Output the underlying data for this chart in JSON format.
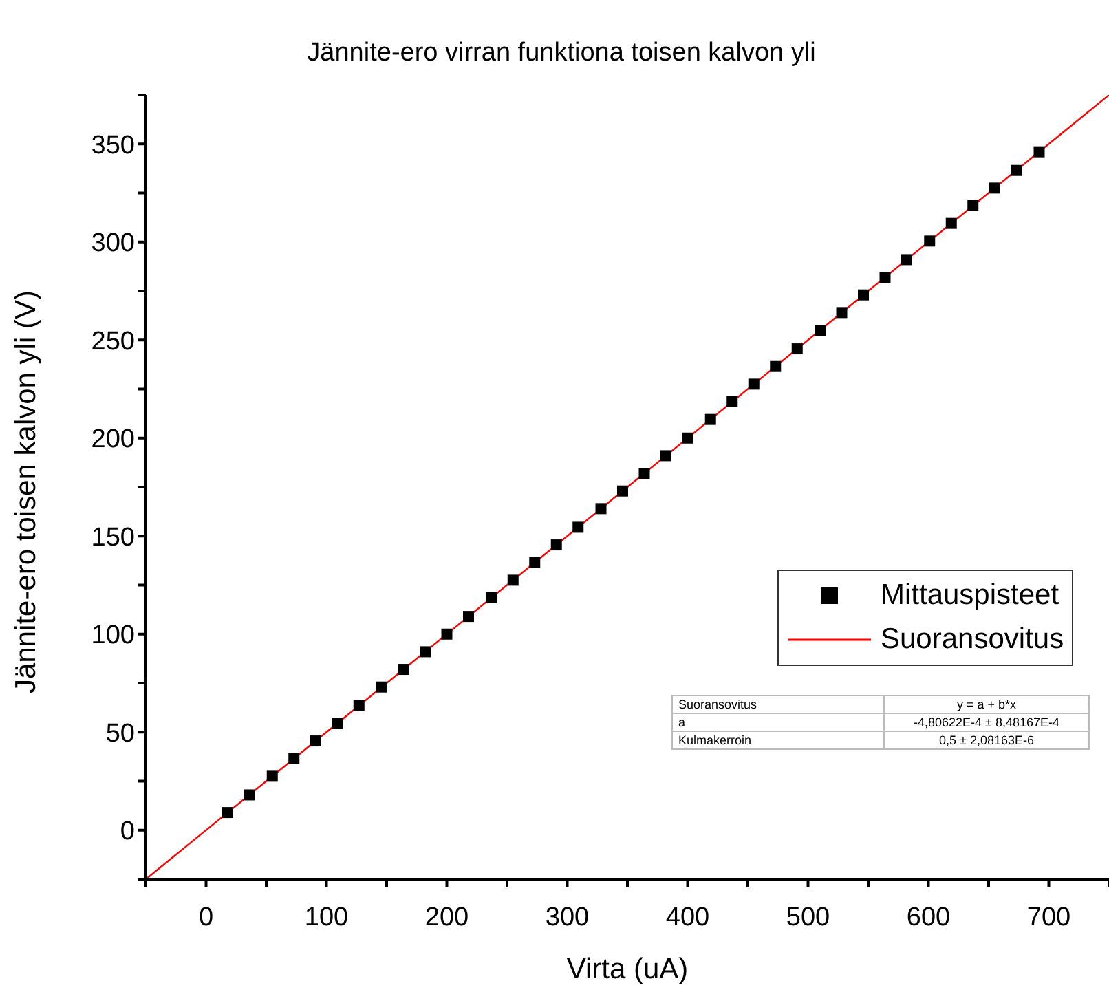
{
  "chart_data": {
    "type": "scatter",
    "title": "Jännite-ero virran funktiona toisen kalvon yli",
    "xlabel": "Virta (uA)",
    "ylabel": "Jännite-ero toisen kalvon yli (V)",
    "xlim": [
      -50,
      750
    ],
    "xticks": [
      {
        "value": -50,
        "label": null
      },
      0,
      {
        "value": 50,
        "label": null
      },
      100,
      {
        "value": 150,
        "label": null
      },
      200,
      {
        "value": 250,
        "label": null
      },
      300,
      {
        "value": 350,
        "label": null
      },
      400,
      {
        "value": 450,
        "label": null
      },
      500,
      {
        "value": 550,
        "label": null
      },
      600,
      {
        "value": 650,
        "label": null
      },
      700,
      {
        "value": 750,
        "label": null
      }
    ],
    "ylim": [
      -25,
      375
    ],
    "yticks": [
      {
        "value": -25,
        "label": null
      },
      0,
      {
        "value": 25,
        "label": null
      },
      50,
      {
        "value": 75,
        "label": null
      },
      100,
      {
        "value": 125,
        "label": null
      },
      150,
      {
        "value": 175,
        "label": null
      },
      200,
      {
        "value": 225,
        "label": null
      },
      250,
      {
        "value": 275,
        "label": null
      },
      300,
      {
        "value": 325,
        "label": null
      },
      350,
      {
        "value": 375,
        "label": null
      }
    ],
    "legend": "right",
    "series": [
      {
        "name": "Mittauspisteet",
        "marker": "square",
        "color": "#000000",
        "x": [
          18,
          36,
          55,
          73,
          91,
          109,
          127,
          146,
          164,
          182,
          200,
          218,
          237,
          255,
          273,
          291,
          309,
          328,
          346,
          364,
          382,
          400,
          419,
          437,
          455,
          473,
          491,
          510,
          528,
          546,
          564,
          582,
          601,
          619,
          637,
          655,
          673,
          692
        ],
        "values": [
          9,
          18,
          27.5,
          36.5,
          45.5,
          54.5,
          63.5,
          73,
          82,
          91,
          100,
          109,
          118.5,
          127.5,
          136.5,
          145.5,
          154.5,
          164,
          173,
          182,
          191,
          200,
          209.5,
          218.5,
          227.5,
          236.5,
          245.5,
          255,
          264,
          273,
          282,
          291,
          300.5,
          309.5,
          318.5,
          327.5,
          336.5,
          346
        ]
      },
      {
        "name": "Suoransovitus",
        "type": "line",
        "marker": "none",
        "color": "#ff0000",
        "x": [
          -50,
          750
        ],
        "values": [
          -25,
          375
        ]
      }
    ],
    "annotations": [
      "Suoransovitus",
      "y = a + b*x",
      "a",
      "-4,80622E-4 ± 8,48167E-4",
      "Kulmakerroin",
      "0,5 ± 2,08163E-6"
    ]
  }
}
